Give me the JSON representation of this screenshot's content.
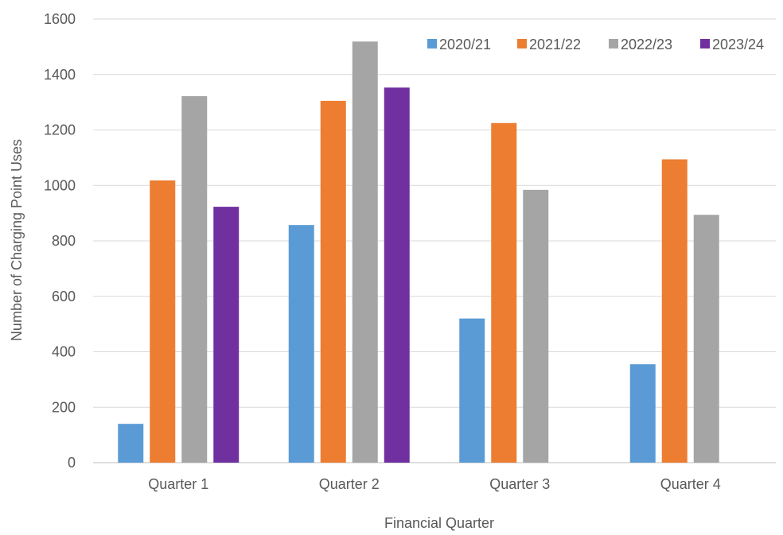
{
  "chart_data": {
    "type": "bar",
    "title": "",
    "xlabel": "Financial Quarter",
    "ylabel": "Number of Charging Point Uses",
    "categories": [
      "Quarter 1",
      "Quarter 2",
      "Quarter 3",
      "Quarter 4"
    ],
    "ylim": [
      0,
      1600
    ],
    "yticks": [
      0,
      200,
      400,
      600,
      800,
      1000,
      1200,
      1400,
      1600
    ],
    "grid": true,
    "legend_position": "top-right",
    "series": [
      {
        "name": "2020/21",
        "color": "#5b9bd5",
        "values": [
          140,
          857,
          520,
          355
        ]
      },
      {
        "name": "2021/22",
        "color": "#ed7d31",
        "values": [
          1018,
          1305,
          1225,
          1094
        ]
      },
      {
        "name": "2022/23",
        "color": "#a5a5a5",
        "values": [
          1322,
          1519,
          984,
          894
        ]
      },
      {
        "name": "2023/24",
        "color": "#7030a0",
        "values": [
          923,
          1353,
          null,
          null
        ]
      }
    ]
  }
}
